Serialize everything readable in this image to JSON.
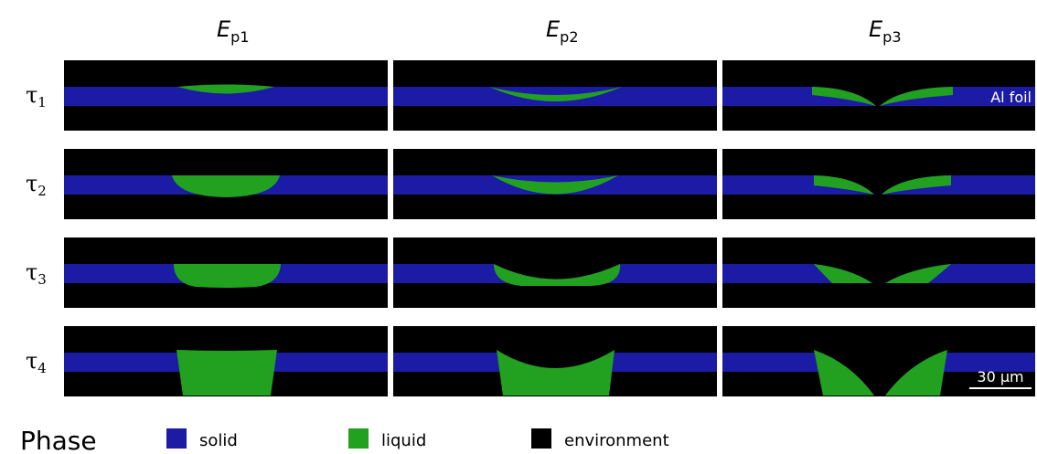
{
  "column_headers": [
    {
      "symbol": "E",
      "subscript": "p1"
    },
    {
      "symbol": "E",
      "subscript": "p2"
    },
    {
      "symbol": "E",
      "subscript": "p3"
    }
  ],
  "row_labels": [
    {
      "symbol": "τ",
      "subscript": "1"
    },
    {
      "symbol": "τ",
      "subscript": "2"
    },
    {
      "symbol": "τ",
      "subscript": "3"
    },
    {
      "symbol": "τ",
      "subscript": "4"
    }
  ],
  "annotation": "Al foil",
  "scale_bar": "30 μm",
  "legend": {
    "title": "Phase",
    "items": [
      {
        "label": "solid",
        "color": "#1c1ba6"
      },
      {
        "label": "liquid",
        "color": "#22a01f"
      },
      {
        "label": "environment",
        "color": "#000000"
      }
    ]
  }
}
